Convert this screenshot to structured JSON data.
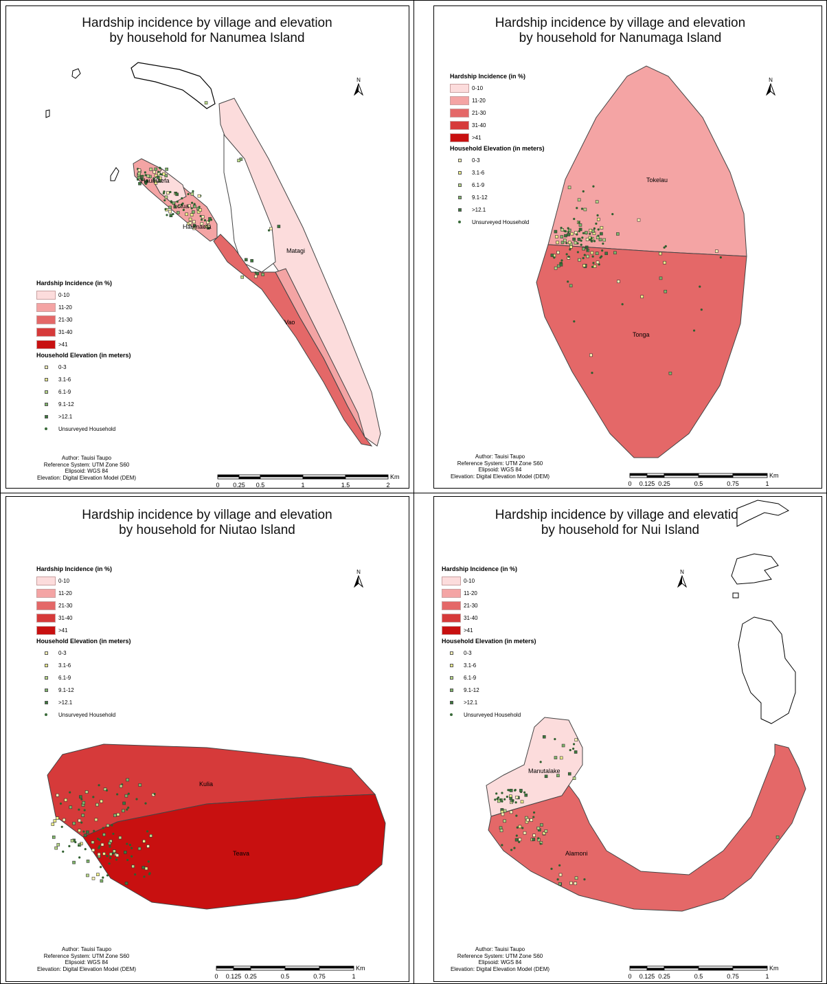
{
  "legend": {
    "hardship_title": "Hardship Incidence (in %)",
    "hardship_classes": [
      {
        "label": "0-10",
        "color": "#fcdcdc"
      },
      {
        "label": "11-20",
        "color": "#f4a4a4"
      },
      {
        "label": "21-30",
        "color": "#e46868"
      },
      {
        "label": "31-40",
        "color": "#d63a3a"
      },
      {
        "label": ">41",
        "color": "#c81010"
      }
    ],
    "elevation_title": "Household Elevation (in meters)",
    "elevation_classes": [
      {
        "label": "0-3",
        "color": "#fff7b8"
      },
      {
        "label": "3.1-6",
        "color": "#f0f08c"
      },
      {
        "label": "6.1-9",
        "color": "#b8d888"
      },
      {
        "label": "9.1-12",
        "color": "#7fb56a"
      },
      {
        "label": ">12.1",
        "color": "#3c7a3c"
      }
    ],
    "unsurveyed_label": "Unsurveyed Household"
  },
  "credits": {
    "author": "Author: Tauisi Taupo",
    "reference": "Reference System: UTM Zone S60",
    "ellipsoid": "Elipsoid: WGS 84",
    "elevation": "Elevation: Digital Elevation Model (DEM)"
  },
  "north_label": "N",
  "scale_unit": "Km",
  "panels": [
    {
      "title_line1": "Hardship incidence by village and elevation",
      "title_line2": "by household for Nanumea Island",
      "villages": [
        {
          "name": "Haumaefa"
        },
        {
          "name": "Lolua"
        },
        {
          "name": "Haumaefa"
        },
        {
          "name": "Matagi"
        },
        {
          "name": "Vao"
        }
      ],
      "scale_ticks": [
        "0",
        "0.25",
        "0.5",
        "1",
        "1.5",
        "2"
      ]
    },
    {
      "title_line1": "Hardship incidence by village and elevation",
      "title_line2": "by household for Nanumaga Island",
      "villages": [
        {
          "name": "Tokelau"
        },
        {
          "name": "Tonga"
        }
      ],
      "scale_ticks": [
        "0",
        "0.125",
        "0.25",
        "0.5",
        "0.75",
        "1"
      ]
    },
    {
      "title_line1": "Hardship incidence by village and elevation",
      "title_line2": "by household for Niutao Island",
      "villages": [
        {
          "name": "Kulia"
        },
        {
          "name": "Teava"
        }
      ],
      "scale_ticks": [
        "0",
        "0.125",
        "0.25",
        "0.5",
        "0.75",
        "1"
      ]
    },
    {
      "title_line1": "Hardship incidence by village and elevation",
      "title_line2": "by household for Nui Island",
      "villages": [
        {
          "name": "Manutalake"
        },
        {
          "name": "Alamoni"
        }
      ],
      "scale_ticks": [
        "0",
        "0.125",
        "0.25",
        "0.5",
        "0.75",
        "1"
      ]
    }
  ]
}
